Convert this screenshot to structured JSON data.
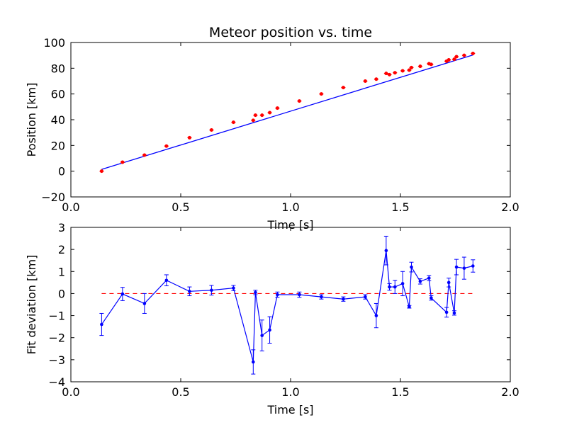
{
  "chart_data": [
    {
      "type": "scatter",
      "title": "Meteor position vs. time",
      "xlabel": "Time [s]",
      "ylabel": "Position [km]",
      "xlim": [
        0.0,
        2.0
      ],
      "ylim": [
        -20,
        100
      ],
      "xticks": [
        "0.0",
        "0.5",
        "1.0",
        "1.5",
        "2.0"
      ],
      "yticks": [
        "−20",
        "0",
        "20",
        "40",
        "60",
        "80",
        "100"
      ],
      "xtick_values": [
        0.0,
        0.5,
        1.0,
        1.5,
        2.0
      ],
      "ytick_values": [
        -20,
        0,
        20,
        40,
        60,
        80,
        100
      ],
      "observations": {
        "color": "#ff0000",
        "x": [
          0.14,
          0.235,
          0.335,
          0.435,
          0.54,
          0.64,
          0.74,
          0.83,
          0.84,
          0.87,
          0.905,
          0.94,
          1.04,
          1.14,
          1.24,
          1.34,
          1.39,
          1.435,
          1.45,
          1.475,
          1.51,
          1.54,
          1.55,
          1.59,
          1.63,
          1.64,
          1.71,
          1.72,
          1.745,
          1.755,
          1.79,
          1.83
        ],
        "y": [
          0.0,
          7.0,
          12.5,
          19.5,
          26.0,
          32.0,
          38.0,
          39.5,
          43.5,
          43.5,
          45.5,
          49.0,
          54.5,
          60.0,
          65.0,
          70.0,
          71.5,
          76.0,
          75.0,
          76.5,
          78.0,
          78.5,
          80.5,
          81.5,
          83.5,
          83.0,
          85.5,
          86.5,
          87.0,
          89.0,
          90.0,
          91.5
        ]
      },
      "fit_line": {
        "color": "#0000ff",
        "x": [
          0.14,
          1.83
        ],
        "y": [
          1.4,
          90.3
        ]
      }
    },
    {
      "type": "line",
      "xlabel": "Time [s]",
      "ylabel": "Fit deviation [km]",
      "xlim": [
        0.0,
        2.0
      ],
      "ylim": [
        -4,
        3
      ],
      "xticks": [
        "0.0",
        "0.5",
        "1.0",
        "1.5",
        "2.0"
      ],
      "yticks": [
        "−4",
        "−3",
        "−2",
        "−1",
        "0",
        "1",
        "2",
        "3"
      ],
      "xtick_values": [
        0.0,
        0.5,
        1.0,
        1.5,
        2.0
      ],
      "ytick_values": [
        -4,
        -3,
        -2,
        -1,
        0,
        1,
        2,
        3
      ],
      "series": {
        "color": "#0000ff",
        "x": [
          0.14,
          0.235,
          0.335,
          0.435,
          0.54,
          0.64,
          0.74,
          0.83,
          0.84,
          0.87,
          0.905,
          0.94,
          1.04,
          1.14,
          1.24,
          1.34,
          1.39,
          1.435,
          1.45,
          1.475,
          1.51,
          1.54,
          1.55,
          1.59,
          1.63,
          1.64,
          1.71,
          1.72,
          1.745,
          1.755,
          1.79,
          1.83
        ],
        "y": [
          -1.4,
          -0.02,
          -0.45,
          0.6,
          0.1,
          0.15,
          0.25,
          -3.1,
          0.05,
          -1.9,
          -1.65,
          -0.05,
          -0.05,
          -0.15,
          -0.25,
          -0.15,
          -1.0,
          1.95,
          0.3,
          0.3,
          0.45,
          -0.6,
          1.2,
          0.55,
          0.7,
          -0.2,
          -0.85,
          0.5,
          -0.88,
          1.2,
          1.15,
          1.25
        ],
        "err": [
          0.5,
          0.3,
          0.45,
          0.25,
          0.2,
          0.22,
          0.12,
          0.55,
          0.1,
          0.7,
          0.6,
          0.12,
          0.12,
          0.1,
          0.1,
          0.1,
          0.55,
          0.65,
          0.15,
          0.3,
          0.55,
          0.06,
          0.22,
          0.12,
          0.12,
          0.1,
          0.22,
          0.2,
          0.1,
          0.35,
          0.5,
          0.28
        ]
      },
      "zero_line": {
        "color": "#ff0000",
        "x": [
          0.14,
          1.83
        ],
        "y": [
          0,
          0
        ]
      }
    }
  ]
}
